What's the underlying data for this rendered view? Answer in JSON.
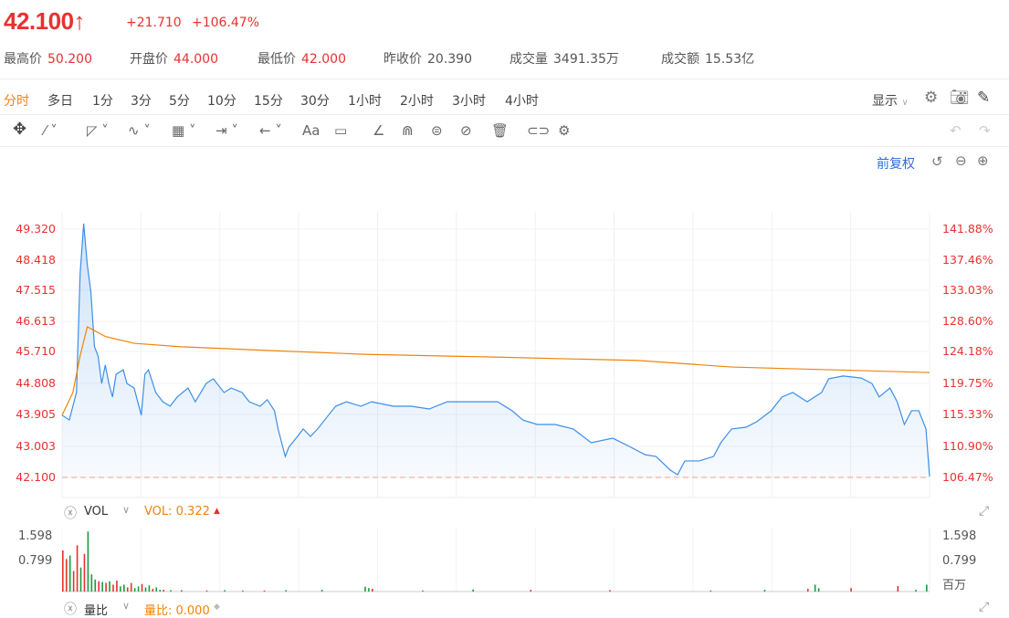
{
  "quote": {
    "price": "42.100",
    "arrow": "↑",
    "change": "+21.710",
    "change_pct": "+106.47%"
  },
  "stats": [
    {
      "label": "最高价",
      "value": "50.200",
      "color": "red"
    },
    {
      "label": "开盘价",
      "value": "44.000",
      "color": "red"
    },
    {
      "label": "最低价",
      "value": "42.000",
      "color": "red"
    },
    {
      "label": "昨收价",
      "value": "20.390",
      "color": "gray"
    },
    {
      "label": "成交量",
      "value": "3491.35万",
      "color": "gray"
    },
    {
      "label": "成交额",
      "value": "15.53亿",
      "color": "gray"
    }
  ],
  "periods": [
    "分时",
    "多日",
    "1分",
    "3分",
    "5分",
    "10分",
    "15分",
    "30分",
    "1小时",
    "2小时",
    "3小时",
    "4小时"
  ],
  "active_period": "分时",
  "display_label": "显示",
  "adjust_label": "前复权",
  "tool_text_label": "Aa",
  "colors": {
    "up": "#e93030",
    "down": "#1a9b3a",
    "price_line": "#3d8ee8",
    "avg_line": "#f0830a",
    "accent": "#f0830a"
  },
  "chart_data": {
    "type": "line",
    "y_left_ticks": [
      "49.320",
      "48.418",
      "47.515",
      "46.613",
      "45.710",
      "44.808",
      "43.905",
      "43.003",
      "42.100"
    ],
    "y_right_ticks": [
      "141.88%",
      "137.46%",
      "133.03%",
      "128.60%",
      "124.18%",
      "119.75%",
      "115.33%",
      "110.90%",
      "106.47%"
    ],
    "ylim": [
      42.1,
      49.32
    ],
    "xlim": [
      0,
      241
    ],
    "prev_close_line": 42.1,
    "price": [
      [
        0,
        43.91
      ],
      [
        2,
        43.77
      ],
      [
        4,
        44.57
      ],
      [
        5,
        48.02
      ],
      [
        6,
        49.48
      ],
      [
        7,
        48.29
      ],
      [
        8,
        47.49
      ],
      [
        9,
        45.9
      ],
      [
        10,
        45.63
      ],
      [
        11,
        44.83
      ],
      [
        12,
        45.37
      ],
      [
        13,
        44.83
      ],
      [
        14,
        44.44
      ],
      [
        15,
        45.1
      ],
      [
        17,
        45.23
      ],
      [
        18,
        44.83
      ],
      [
        20,
        44.7
      ],
      [
        22,
        43.91
      ],
      [
        23,
        45.1
      ],
      [
        24,
        45.23
      ],
      [
        26,
        44.57
      ],
      [
        28,
        44.3
      ],
      [
        30,
        44.17
      ],
      [
        32,
        44.44
      ],
      [
        35,
        44.7
      ],
      [
        37,
        44.3
      ],
      [
        40,
        44.83
      ],
      [
        42,
        44.97
      ],
      [
        45,
        44.57
      ],
      [
        47,
        44.7
      ],
      [
        50,
        44.57
      ],
      [
        52,
        44.3
      ],
      [
        55,
        44.17
      ],
      [
        57,
        44.36
      ],
      [
        59,
        44.04
      ],
      [
        60,
        43.51
      ],
      [
        62,
        42.71
      ],
      [
        63,
        42.98
      ],
      [
        65,
        43.24
      ],
      [
        67,
        43.51
      ],
      [
        69,
        43.29
      ],
      [
        71,
        43.51
      ],
      [
        74,
        43.91
      ],
      [
        76,
        44.17
      ],
      [
        79,
        44.3
      ],
      [
        83,
        44.17
      ],
      [
        86,
        44.3
      ],
      [
        92,
        44.17
      ],
      [
        97,
        44.17
      ],
      [
        102,
        44.09
      ],
      [
        107,
        44.3
      ],
      [
        112,
        44.3
      ],
      [
        117,
        44.3
      ],
      [
        121,
        44.3
      ],
      [
        125,
        44.04
      ],
      [
        128,
        43.77
      ],
      [
        132,
        43.64
      ],
      [
        137,
        43.64
      ],
      [
        142,
        43.51
      ],
      [
        147,
        43.11
      ],
      [
        153,
        43.24
      ],
      [
        158,
        42.98
      ],
      [
        162,
        42.76
      ],
      [
        165,
        42.71
      ],
      [
        169,
        42.31
      ],
      [
        171,
        42.18
      ],
      [
        173,
        42.58
      ],
      [
        177,
        42.58
      ],
      [
        181,
        42.71
      ],
      [
        183,
        43.11
      ],
      [
        186,
        43.51
      ],
      [
        190,
        43.56
      ],
      [
        193,
        43.72
      ],
      [
        197,
        44.04
      ],
      [
        200,
        44.44
      ],
      [
        203,
        44.57
      ],
      [
        207,
        44.3
      ],
      [
        211,
        44.57
      ],
      [
        213,
        44.97
      ],
      [
        217,
        45.05
      ],
      [
        222,
        44.99
      ],
      [
        225,
        44.83
      ],
      [
        227,
        44.44
      ],
      [
        230,
        44.7
      ],
      [
        232,
        44.3
      ],
      [
        234,
        43.64
      ],
      [
        236,
        44.04
      ],
      [
        238,
        44.04
      ],
      [
        240,
        43.51
      ],
      [
        241,
        42.13
      ]
    ],
    "average": [
      [
        0,
        43.91
      ],
      [
        3,
        44.57
      ],
      [
        5,
        45.63
      ],
      [
        7,
        46.48
      ],
      [
        12,
        46.2
      ],
      [
        20,
        46.0
      ],
      [
        33,
        45.9
      ],
      [
        60,
        45.78
      ],
      [
        84,
        45.68
      ],
      [
        120,
        45.6
      ],
      [
        160,
        45.5
      ],
      [
        186,
        45.31
      ],
      [
        210,
        45.24
      ],
      [
        241,
        45.15
      ]
    ]
  },
  "volume_panel": {
    "name": "VOL",
    "value_label": "VOL: 0.322",
    "ticks": [
      "1.598",
      "0.799"
    ],
    "unit": "百万",
    "chart_data": {
      "type": "bar",
      "ylim": [
        0,
        1.598
      ],
      "bars": [
        [
          0,
          1.2,
          "up"
        ],
        [
          1,
          0.95,
          "up"
        ],
        [
          2,
          1.05,
          "down"
        ],
        [
          3,
          0.6,
          "up"
        ],
        [
          4,
          1.35,
          "up"
        ],
        [
          5,
          0.7,
          "down"
        ],
        [
          6,
          1.1,
          "up"
        ],
        [
          7,
          1.75,
          "down"
        ],
        [
          8,
          0.5,
          "down"
        ],
        [
          9,
          0.35,
          "down"
        ],
        [
          10,
          0.3,
          "up"
        ],
        [
          11,
          0.28,
          "down"
        ],
        [
          12,
          0.25,
          "up"
        ],
        [
          13,
          0.3,
          "down"
        ],
        [
          14,
          0.2,
          "up"
        ],
        [
          15,
          0.32,
          "up"
        ],
        [
          16,
          0.15,
          "down"
        ],
        [
          17,
          0.2,
          "down"
        ],
        [
          18,
          0.12,
          "up"
        ],
        [
          19,
          0.25,
          "up"
        ],
        [
          20,
          0.1,
          "down"
        ],
        [
          21,
          0.15,
          "down"
        ],
        [
          22,
          0.22,
          "up"
        ],
        [
          23,
          0.12,
          "down"
        ],
        [
          24,
          0.18,
          "down"
        ],
        [
          25,
          0.08,
          "up"
        ],
        [
          26,
          0.12,
          "down"
        ],
        [
          27,
          0.05,
          "down"
        ],
        [
          28,
          0.05,
          "up"
        ],
        [
          30,
          0.04,
          "down"
        ],
        [
          33,
          0.04,
          "down"
        ],
        [
          40,
          0.03,
          "up"
        ],
        [
          45,
          0.04,
          "down"
        ],
        [
          50,
          0.03,
          "down"
        ],
        [
          56,
          0.03,
          "up"
        ],
        [
          62,
          0.04,
          "down"
        ],
        [
          72,
          0.05,
          "down"
        ],
        [
          84,
          0.14,
          "down"
        ],
        [
          85,
          0.1,
          "down"
        ],
        [
          86,
          0.08,
          "up"
        ],
        [
          100,
          0.03,
          "down"
        ],
        [
          114,
          0.06,
          "down"
        ],
        [
          130,
          0.05,
          "up"
        ],
        [
          152,
          0.04,
          "up"
        ],
        [
          180,
          0.03,
          "down"
        ],
        [
          195,
          0.05,
          "down"
        ],
        [
          207,
          0.08,
          "up"
        ],
        [
          209,
          0.2,
          "down"
        ],
        [
          210,
          0.1,
          "down"
        ],
        [
          219,
          0.1,
          "up"
        ],
        [
          232,
          0.16,
          "up"
        ],
        [
          237,
          0.05,
          "down"
        ],
        [
          240,
          0.2,
          "down"
        ]
      ]
    }
  },
  "ratio_panel": {
    "name": "量比",
    "value_label": "量比: 0.000"
  }
}
